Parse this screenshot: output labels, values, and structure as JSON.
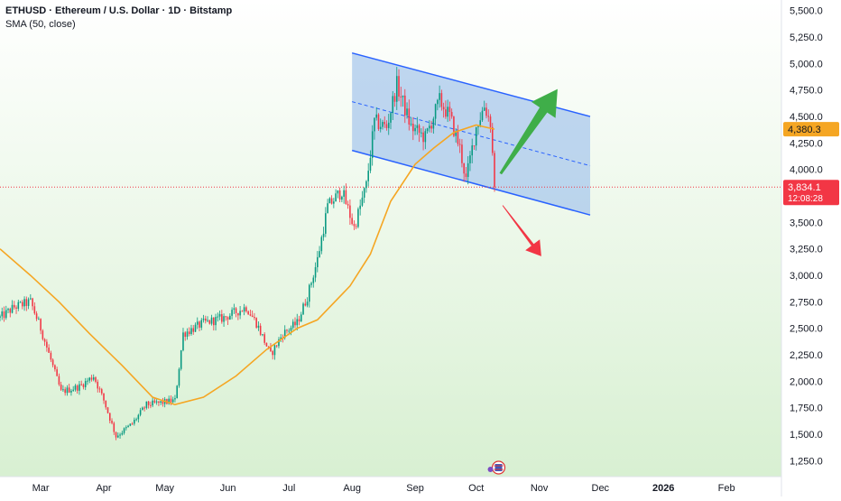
{
  "header": {
    "title": "ETHUSD · Ethereum / U.S. Dollar · 1D · Bitstamp",
    "indicator": "SMA (50, close)"
  },
  "colors": {
    "up": "#089981",
    "down": "#f23645",
    "sma": "#f5a623",
    "channel_line": "#2962ff",
    "channel_fill": "#aac8ec",
    "arrow_up": "#3fae49",
    "arrow_down": "#f23645",
    "bg_top": "#ffffff",
    "bg_bottom": "#d8f0d2"
  },
  "chart_data": {
    "type": "candlestick",
    "title": "ETHUSD · Ethereum / U.S. Dollar · 1D · Bitstamp",
    "ylim": [
      1100,
      5600
    ],
    "y_ticks": [
      "5,500.0",
      "5,250.0",
      "5,000.0",
      "4,750.0",
      "4,500.0",
      "4,250.0",
      "4,000.0",
      "3,750.0",
      "3,500.0",
      "3,250.0",
      "3,000.0",
      "2,750.0",
      "2,500.0",
      "2,250.0",
      "2,000.0",
      "1,750.0",
      "1,500.0",
      "1,250.0"
    ],
    "y_tick_values": [
      5500,
      5250,
      5000,
      4750,
      4500,
      4250,
      4000,
      3750,
      3500,
      3250,
      3000,
      2750,
      2500,
      2250,
      2000,
      1750,
      1500,
      1250
    ],
    "x_ticks": [
      "Mar",
      "Apr",
      "May",
      "Jun",
      "Jul",
      "Aug",
      "Sep",
      "Oct",
      "Nov",
      "Dec",
      "2026",
      "Feb"
    ],
    "x_tick_dates": [
      "2025-03-01",
      "2025-04-01",
      "2025-05-01",
      "2025-06-01",
      "2025-07-01",
      "2025-08-01",
      "2025-09-01",
      "2025-10-01",
      "2025-11-01",
      "2025-12-01",
      "2026-01-01",
      "2026-02-01"
    ],
    "x_start": "2025-02-09",
    "x_end": "2026-02-28",
    "price_path": [
      [
        "2025-02-09",
        2600
      ],
      [
        "2025-02-16",
        2700
      ],
      [
        "2025-02-24",
        2750
      ],
      [
        "2025-03-01",
        2500
      ],
      [
        "2025-03-06",
        2200
      ],
      [
        "2025-03-11",
        1900
      ],
      [
        "2025-03-20",
        1950
      ],
      [
        "2025-03-27",
        2050
      ],
      [
        "2025-04-01",
        1820
      ],
      [
        "2025-04-07",
        1480
      ],
      [
        "2025-04-15",
        1600
      ],
      [
        "2025-04-22",
        1780
      ],
      [
        "2025-04-30",
        1800
      ],
      [
        "2025-05-06",
        1820
      ],
      [
        "2025-05-10",
        2450
      ],
      [
        "2025-05-20",
        2550
      ],
      [
        "2025-05-30",
        2600
      ],
      [
        "2025-06-10",
        2700
      ],
      [
        "2025-06-15",
        2550
      ],
      [
        "2025-06-22",
        2250
      ],
      [
        "2025-06-28",
        2450
      ],
      [
        "2025-07-05",
        2550
      ],
      [
        "2025-07-10",
        2800
      ],
      [
        "2025-07-15",
        3150
      ],
      [
        "2025-07-20",
        3650
      ],
      [
        "2025-07-27",
        3800
      ],
      [
        "2025-08-02",
        3450
      ],
      [
        "2025-08-08",
        3850
      ],
      [
        "2025-08-12",
        4450
      ],
      [
        "2025-08-18",
        4400
      ],
      [
        "2025-08-23",
        4800
      ],
      [
        "2025-08-30",
        4400
      ],
      [
        "2025-09-06",
        4300
      ],
      [
        "2025-09-13",
        4650
      ],
      [
        "2025-09-18",
        4500
      ],
      [
        "2025-09-23",
        4200
      ],
      [
        "2025-09-26",
        3900
      ],
      [
        "2025-10-01",
        4400
      ],
      [
        "2025-10-05",
        4600
      ],
      [
        "2025-10-08",
        4450
      ],
      [
        "2025-10-10",
        3834
      ]
    ],
    "sma_path": [
      [
        "2025-02-09",
        3250
      ],
      [
        "2025-02-24",
        3000
      ],
      [
        "2025-03-10",
        2750
      ],
      [
        "2025-03-25",
        2450
      ],
      [
        "2025-04-10",
        2150
      ],
      [
        "2025-04-25",
        1850
      ],
      [
        "2025-05-06",
        1780
      ],
      [
        "2025-05-20",
        1850
      ],
      [
        "2025-06-05",
        2050
      ],
      [
        "2025-06-20",
        2300
      ],
      [
        "2025-07-05",
        2500
      ],
      [
        "2025-07-15",
        2580
      ],
      [
        "2025-07-31",
        2900
      ],
      [
        "2025-08-10",
        3200
      ],
      [
        "2025-08-20",
        3700
      ],
      [
        "2025-09-01",
        4050
      ],
      [
        "2025-09-10",
        4200
      ],
      [
        "2025-09-20",
        4350
      ],
      [
        "2025-10-01",
        4420
      ],
      [
        "2025-10-10",
        4380
      ]
    ],
    "channel": {
      "upper": [
        [
          "2025-08-01",
          5100
        ],
        [
          "2025-11-26",
          4500
        ]
      ],
      "lower": [
        [
          "2025-08-01",
          4180
        ],
        [
          "2025-11-26",
          3570
        ]
      ],
      "mid": [
        [
          "2025-08-01",
          4640
        ],
        [
          "2025-11-26",
          4035
        ]
      ]
    },
    "arrows": [
      {
        "direction": "up",
        "from": [
          "2025-10-13",
          3960
        ],
        "to": [
          "2025-11-10",
          4760
        ]
      },
      {
        "direction": "down",
        "from": [
          "2025-10-14",
          3660
        ],
        "to": [
          "2025-11-02",
          3180
        ]
      }
    ],
    "price_labels": [
      {
        "value": 4380.3,
        "text": "4,380.3",
        "kind": "sma"
      },
      {
        "value": 3834.1,
        "text": "3,834.1",
        "kind": "last",
        "countdown": "12:08:28"
      }
    ],
    "last_price": 3834.1
  }
}
